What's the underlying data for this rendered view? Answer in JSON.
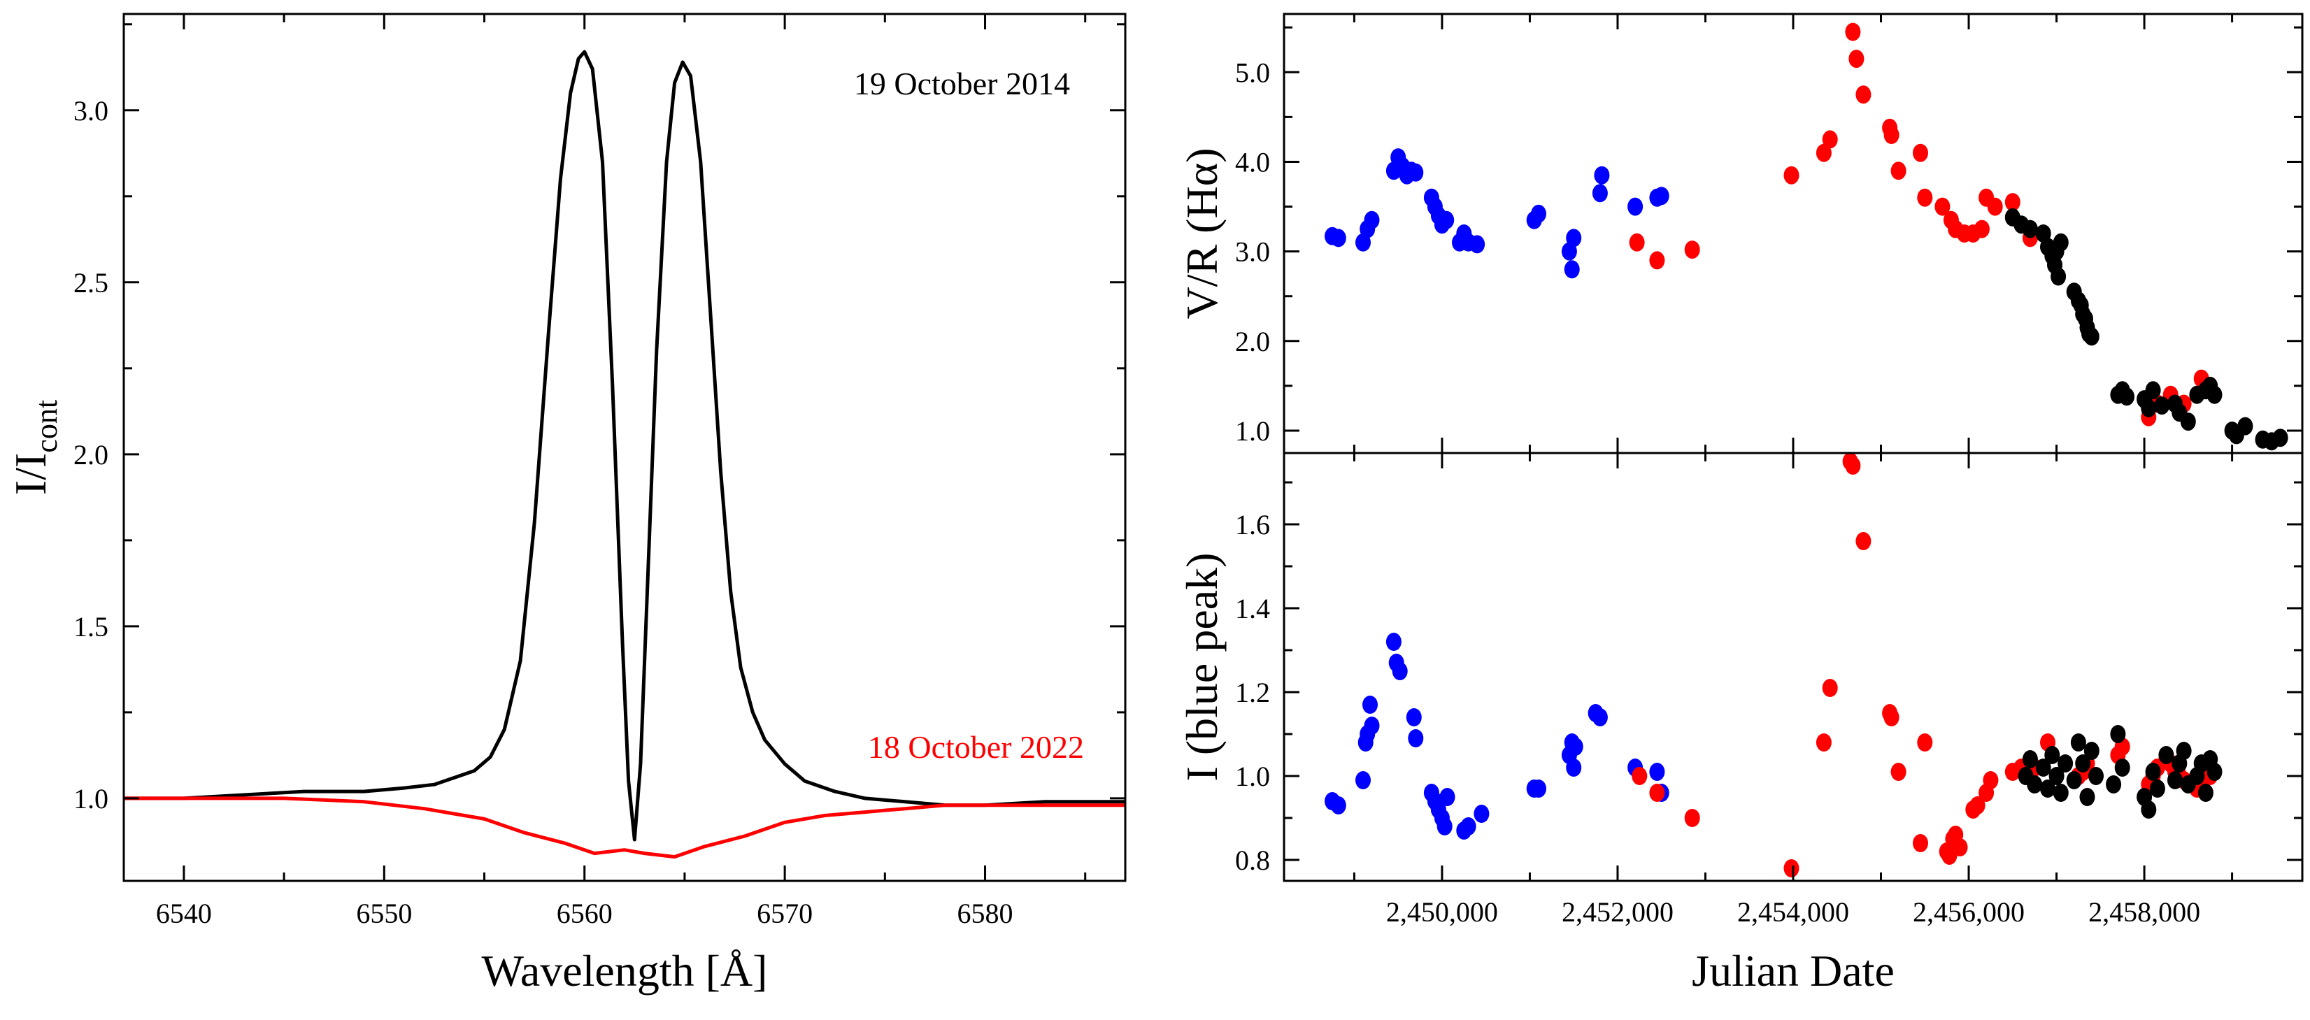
{
  "chart_data": [
    {
      "id": "spectrum",
      "type": "line",
      "xlabel": "Wavelength [Å]",
      "ylabel_main": "I/I",
      "ylabel_sub": "cont",
      "xlim": [
        6537,
        6587
      ],
      "ylim": [
        0.76,
        3.28
      ],
      "xticks": [
        6540,
        6550,
        6560,
        6570,
        6580
      ],
      "yticks": [
        1.0,
        1.5,
        2.0,
        2.5,
        3.0
      ],
      "ytick_labels": [
        "1.0",
        "1.5",
        "2.0",
        "2.5",
        "3.0"
      ],
      "grid": false,
      "annotations": [
        {
          "text": "19 October 2014",
          "color": "#000000"
        },
        {
          "text": "18 October 2022",
          "color": "#ff0000"
        }
      ],
      "series": [
        {
          "color": "#000000",
          "x": [
            6537,
            6540,
            6543,
            6546,
            6549,
            6551,
            6552.5,
            6553.5,
            6554.5,
            6555.3,
            6556,
            6556.8,
            6557.5,
            6558.2,
            6558.8,
            6559.3,
            6559.7,
            6560,
            6560.4,
            6560.9,
            6561.4,
            6561.9,
            6562.2,
            6562.5,
            6562.8,
            6563.2,
            6563.6,
            6564.1,
            6564.5,
            6564.9,
            6565.3,
            6565.8,
            6566.3,
            6566.8,
            6567.3,
            6567.8,
            6568.4,
            6569,
            6570,
            6571,
            6572.5,
            6574,
            6576,
            6578,
            6580,
            6583,
            6587
          ],
          "y": [
            1.0,
            1.0,
            1.01,
            1.02,
            1.02,
            1.03,
            1.04,
            1.06,
            1.08,
            1.12,
            1.2,
            1.4,
            1.8,
            2.35,
            2.8,
            3.05,
            3.15,
            3.17,
            3.12,
            2.85,
            2.2,
            1.45,
            1.05,
            0.88,
            1.1,
            1.7,
            2.3,
            2.85,
            3.08,
            3.14,
            3.1,
            2.85,
            2.4,
            1.95,
            1.6,
            1.38,
            1.25,
            1.17,
            1.1,
            1.05,
            1.02,
            1.0,
            0.99,
            0.98,
            0.98,
            0.99,
            0.99
          ]
        },
        {
          "color": "#ff0000",
          "x": [
            6537,
            6541,
            6545,
            6549,
            6552,
            6555,
            6557,
            6559,
            6560.5,
            6562,
            6563,
            6564.5,
            6566,
            6568,
            6570,
            6572,
            6574,
            6576,
            6578,
            6581,
            6584,
            6587
          ],
          "y": [
            1.0,
            1.0,
            1.0,
            0.99,
            0.97,
            0.94,
            0.9,
            0.87,
            0.84,
            0.85,
            0.84,
            0.83,
            0.86,
            0.89,
            0.93,
            0.95,
            0.96,
            0.97,
            0.98,
            0.98,
            0.98,
            0.98
          ]
        }
      ]
    },
    {
      "id": "vr",
      "type": "scatter",
      "ylabel": "V/R (Hα)",
      "xlim": [
        2448200,
        2459800
      ],
      "ylim": [
        0.75,
        5.65
      ],
      "yticks": [
        1.0,
        2.0,
        3.0,
        4.0,
        5.0
      ],
      "ytick_labels": [
        "1.0",
        "2.0",
        "3.0",
        "4.0",
        "5.0"
      ],
      "grid": false,
      "series": [
        {
          "color": "#0000ff",
          "x": [
            2448750,
            2448820,
            2449100,
            2449150,
            2449200,
            2449450,
            2449500,
            2449550,
            2449600,
            2449650,
            2449700,
            2449880,
            2449920,
            2449960,
            2450000,
            2450050,
            2450200,
            2450250,
            2450300,
            2450400,
            2451050,
            2451100,
            2451450,
            2451480,
            2451500,
            2451800,
            2451820,
            2452200,
            2452450,
            2452500
          ],
          "y": [
            3.17,
            3.15,
            3.1,
            3.25,
            3.35,
            3.9,
            4.05,
            3.95,
            3.85,
            3.9,
            3.88,
            3.6,
            3.5,
            3.4,
            3.3,
            3.35,
            3.1,
            3.2,
            3.1,
            3.08,
            3.35,
            3.42,
            3.0,
            2.8,
            3.15,
            3.65,
            3.85,
            3.5,
            3.6,
            3.62
          ]
        },
        {
          "color": "#ff0000",
          "x": [
            2452220,
            2452450,
            2452850,
            2453980,
            2454350,
            2454420,
            2454680,
            2454720,
            2454800,
            2455100,
            2455120,
            2455200,
            2455450,
            2455500,
            2455700,
            2455800,
            2455850,
            2455950,
            2456050,
            2456150,
            2456200,
            2456300,
            2456500,
            2456700,
            2458050,
            2458150,
            2458300,
            2458450,
            2458650
          ],
          "y": [
            3.1,
            2.9,
            3.02,
            3.85,
            4.1,
            4.25,
            5.45,
            5.15,
            4.75,
            4.38,
            4.3,
            3.9,
            4.1,
            3.6,
            3.5,
            3.35,
            3.25,
            3.2,
            3.2,
            3.25,
            3.6,
            3.5,
            3.55,
            3.15,
            1.15,
            1.3,
            1.4,
            1.3,
            1.58
          ]
        },
        {
          "color": "#000000",
          "x": [
            2456500,
            2456600,
            2456700,
            2456850,
            2456900,
            2456950,
            2456980,
            2457000,
            2457020,
            2457050,
            2457200,
            2457250,
            2457280,
            2457300,
            2457330,
            2457350,
            2457370,
            2457400,
            2457700,
            2457750,
            2457800,
            2458000,
            2458050,
            2458100,
            2458200,
            2458350,
            2458400,
            2458500,
            2458600,
            2458700,
            2458750,
            2458800,
            2459000,
            2459050,
            2459150,
            2459350,
            2459450,
            2459550
          ],
          "y": [
            3.38,
            3.3,
            3.25,
            3.2,
            3.05,
            2.95,
            2.85,
            3.0,
            2.72,
            3.1,
            2.55,
            2.45,
            2.4,
            2.3,
            2.25,
            2.15,
            2.08,
            2.05,
            1.4,
            1.45,
            1.38,
            1.35,
            1.25,
            1.45,
            1.28,
            1.3,
            1.2,
            1.1,
            1.4,
            1.45,
            1.5,
            1.4,
            1.0,
            0.95,
            1.05,
            0.9,
            0.88,
            0.92
          ]
        }
      ]
    },
    {
      "id": "blue-peak",
      "type": "scatter",
      "ylabel": "I (blue peak)",
      "xlabel": "Julian Date",
      "xlim": [
        2448200,
        2459800
      ],
      "ylim": [
        0.75,
        1.77
      ],
      "xticks": [
        2450000,
        2452000,
        2454000,
        2456000,
        2458000
      ],
      "xtick_labels": [
        "2,450,000",
        "2,452,000",
        "2,454,000",
        "2,456,000",
        "2,458,000"
      ],
      "yticks": [
        0.8,
        1.0,
        1.2,
        1.4,
        1.6
      ],
      "ytick_labels": [
        "0.8",
        "1.0",
        "1.2",
        "1.4",
        "1.6"
      ],
      "grid": false,
      "series": [
        {
          "color": "#0000ff",
          "x": [
            2448750,
            2448820,
            2449100,
            2449130,
            2449150,
            2449180,
            2449200,
            2449450,
            2449480,
            2449520,
            2449680,
            2449700,
            2449880,
            2449920,
            2449960,
            2450000,
            2450030,
            2450060,
            2450250,
            2450300,
            2450450,
            2451050,
            2451100,
            2451450,
            2451480,
            2451500,
            2451520,
            2451750,
            2451800,
            2452200,
            2452450,
            2452500
          ],
          "y": [
            0.94,
            0.93,
            0.99,
            1.08,
            1.1,
            1.17,
            1.12,
            1.32,
            1.27,
            1.25,
            1.14,
            1.09,
            0.96,
            0.94,
            0.92,
            0.9,
            0.88,
            0.95,
            0.87,
            0.88,
            0.91,
            0.97,
            0.97,
            1.05,
            1.08,
            1.02,
            1.07,
            1.15,
            1.14,
            1.02,
            1.01,
            0.96
          ]
        },
        {
          "color": "#ff0000",
          "x": [
            2452250,
            2452450,
            2452850,
            2453980,
            2454350,
            2454420,
            2454650,
            2454680,
            2454800,
            2455100,
            2455120,
            2455200,
            2455450,
            2455500,
            2455750,
            2455780,
            2455820,
            2455850,
            2455900,
            2456050,
            2456100,
            2456200,
            2456250,
            2456500,
            2456600,
            2456750,
            2456900,
            2457250,
            2457300,
            2457350,
            2457700,
            2457750,
            2458050,
            2458100,
            2458150,
            2458250,
            2458300,
            2458350,
            2458400,
            2458450,
            2458550,
            2458600,
            2458650,
            2458700,
            2458750
          ],
          "y": [
            1.0,
            0.96,
            0.9,
            0.78,
            1.08,
            1.21,
            1.75,
            1.74,
            1.56,
            1.15,
            1.14,
            1.01,
            0.84,
            1.08,
            0.82,
            0.81,
            0.85,
            0.86,
            0.83,
            0.92,
            0.93,
            0.96,
            0.99,
            1.01,
            1.02,
            1.02,
            1.08,
            1.0,
            1.01,
            1.03,
            1.05,
            1.07,
            0.98,
            1.0,
            1.02,
            1.04,
            1.03,
            1.01,
            1.0,
            0.99,
            0.98,
            0.97,
            0.99,
            1.02,
            1.0
          ]
        },
        {
          "color": "#000000",
          "x": [
            2456650,
            2456700,
            2456750,
            2456850,
            2456900,
            2456950,
            2457000,
            2457050,
            2457100,
            2457200,
            2457250,
            2457300,
            2457350,
            2457400,
            2457450,
            2457650,
            2457700,
            2457750,
            2458000,
            2458050,
            2458100,
            2458150,
            2458250,
            2458350,
            2458400,
            2458450,
            2458500,
            2458600,
            2458650,
            2458700,
            2458750,
            2458800
          ],
          "y": [
            1.0,
            1.04,
            0.98,
            1.02,
            0.97,
            1.05,
            1.0,
            0.96,
            1.03,
            0.99,
            1.08,
            1.03,
            0.95,
            1.06,
            1.0,
            0.98,
            1.1,
            1.02,
            0.95,
            0.92,
            1.01,
            0.97,
            1.05,
            0.99,
            1.03,
            1.06,
            0.98,
            1.0,
            1.03,
            0.96,
            1.04,
            1.01
          ]
        }
      ]
    }
  ]
}
